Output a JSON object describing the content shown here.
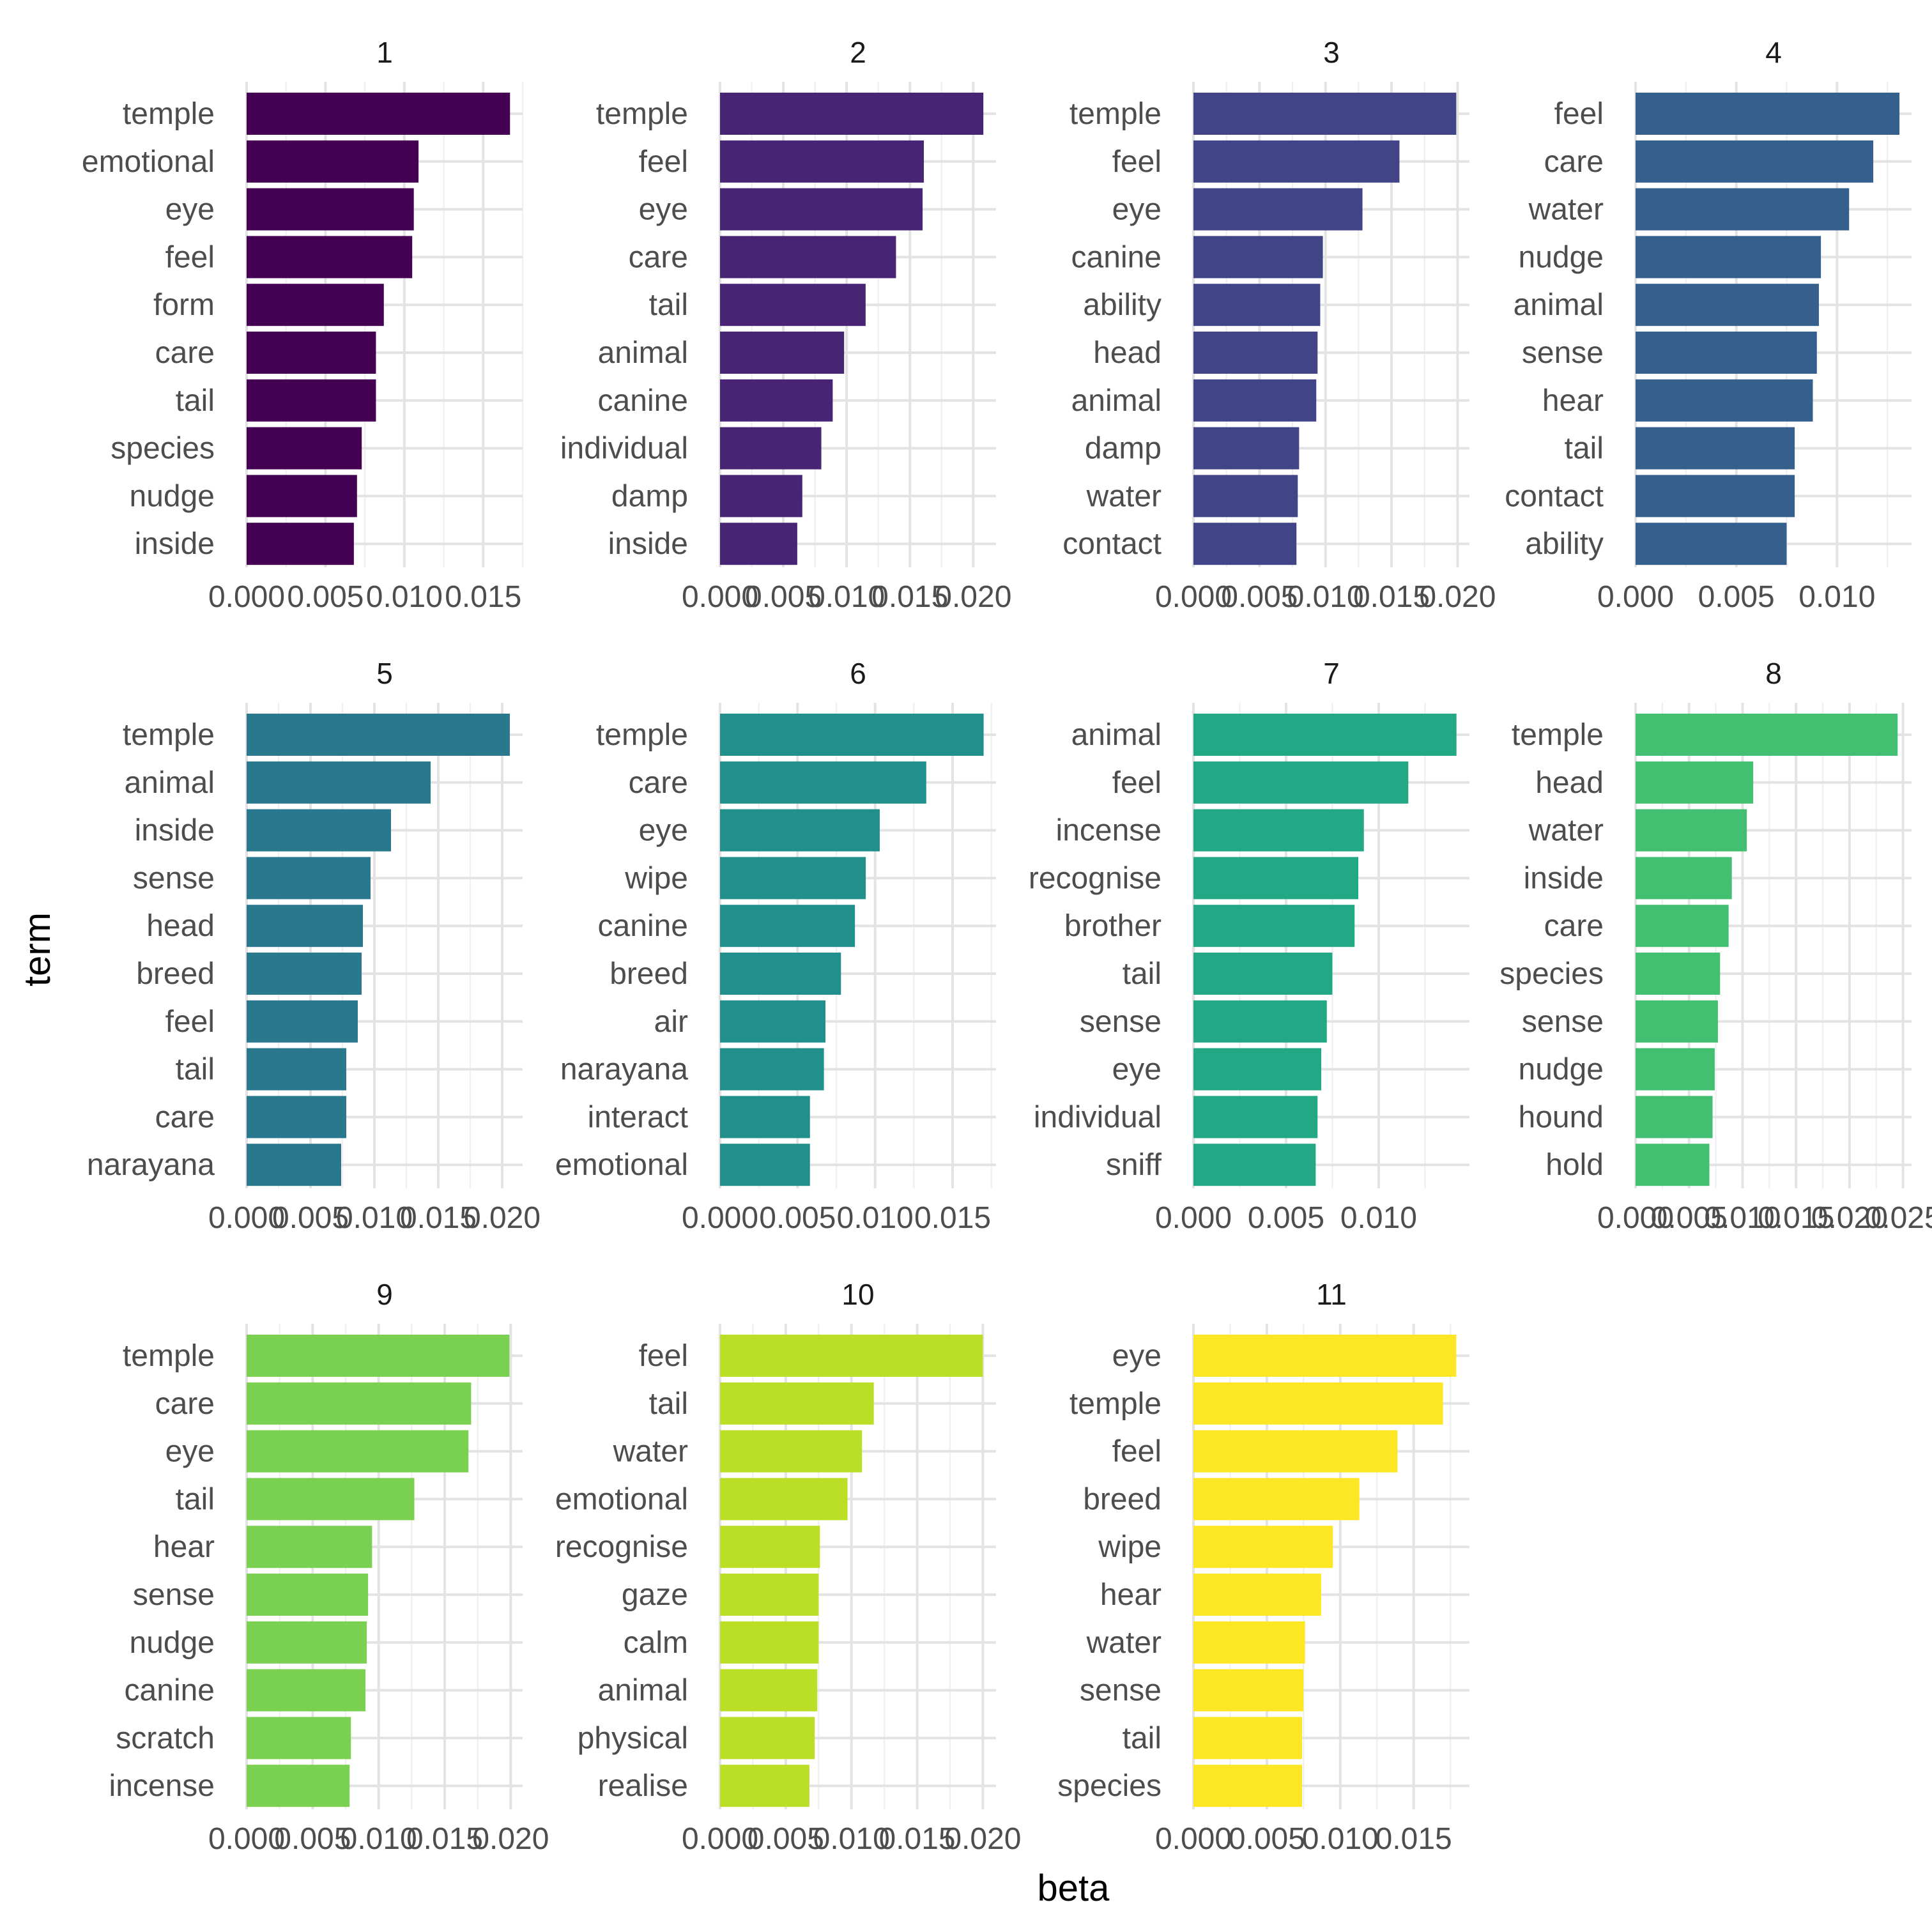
{
  "chart_data": {
    "type": "bar",
    "orientation": "horizontal",
    "layout": "facet grid, 4 columns x 3 rows, free scales",
    "xlabel": "beta",
    "ylabel": "term",
    "grid": true,
    "legend": "none",
    "colors": [
      "#440154",
      "#482475",
      "#414487",
      "#355F8D",
      "#2A788E",
      "#21908C",
      "#22A884",
      "#43BF71",
      "#7AD151",
      "#BBDF27",
      "#FDE725"
    ],
    "facets": [
      {
        "title": "1",
        "xlim": [
          0,
          0.0175
        ],
        "ticks": [
          0,
          0.005,
          0.01,
          0.015
        ],
        "tick_labels": [
          "0.000",
          "0.005",
          "0.010",
          "0.015"
        ],
        "terms": [
          "temple",
          "emotional",
          "eye",
          "feel",
          "form",
          "care",
          "tail",
          "species",
          "nudge",
          "inside"
        ],
        "values": [
          0.0167,
          0.0109,
          0.0106,
          0.0105,
          0.0087,
          0.0082,
          0.0082,
          0.0073,
          0.007,
          0.0068
        ]
      },
      {
        "title": "2",
        "xlim": [
          0,
          0.0218
        ],
        "ticks": [
          0,
          0.005,
          0.01,
          0.015,
          0.02
        ],
        "tick_labels": [
          "0.000",
          "0.005",
          "0.010",
          "0.015",
          "0.020"
        ],
        "terms": [
          "temple",
          "feel",
          "eye",
          "care",
          "tail",
          "animal",
          "canine",
          "individual",
          "damp",
          "inside"
        ],
        "values": [
          0.0208,
          0.0161,
          0.016,
          0.0139,
          0.0115,
          0.0098,
          0.0089,
          0.008,
          0.0065,
          0.0061
        ]
      },
      {
        "title": "3",
        "xlim": [
          0,
          0.0209
        ],
        "ticks": [
          0,
          0.005,
          0.01,
          0.015,
          0.02
        ],
        "tick_labels": [
          "0.000",
          "0.005",
          "0.010",
          "0.015",
          "0.020"
        ],
        "terms": [
          "temple",
          "feel",
          "eye",
          "canine",
          "ability",
          "head",
          "animal",
          "damp",
          "water",
          "contact"
        ],
        "values": [
          0.0199,
          0.0156,
          0.0128,
          0.0098,
          0.0096,
          0.0094,
          0.0093,
          0.008,
          0.0079,
          0.0078
        ]
      },
      {
        "title": "4",
        "xlim": [
          0,
          0.0137
        ],
        "ticks": [
          0,
          0.005,
          0.01
        ],
        "tick_labels": [
          "0.000",
          "0.005",
          "0.010"
        ],
        "terms": [
          "feel",
          "care",
          "water",
          "nudge",
          "animal",
          "sense",
          "hear",
          "tail",
          "contact",
          "ability"
        ],
        "values": [
          0.0131,
          0.0118,
          0.0106,
          0.0092,
          0.0091,
          0.009,
          0.0088,
          0.0079,
          0.0079,
          0.0075
        ]
      },
      {
        "title": "5",
        "xlim": [
          0,
          0.0216
        ],
        "ticks": [
          0,
          0.005,
          0.01,
          0.015,
          0.02
        ],
        "tick_labels": [
          "0.000",
          "0.005",
          "0.010",
          "0.015",
          "0.020"
        ],
        "terms": [
          "temple",
          "animal",
          "inside",
          "sense",
          "head",
          "breed",
          "feel",
          "tail",
          "care",
          "narayana"
        ],
        "values": [
          0.0206,
          0.0144,
          0.0113,
          0.0097,
          0.0091,
          0.009,
          0.0087,
          0.0078,
          0.0078,
          0.0074
        ]
      },
      {
        "title": "6",
        "xlim": [
          0,
          0.0178
        ],
        "ticks": [
          0,
          0.005,
          0.01,
          0.015
        ],
        "tick_labels": [
          "0.000",
          "0.005",
          "0.010",
          "0.015"
        ],
        "terms": [
          "temple",
          "care",
          "eye",
          "wipe",
          "canine",
          "breed",
          "air",
          "narayana",
          "interact",
          "emotional"
        ],
        "values": [
          0.017,
          0.0133,
          0.0103,
          0.0094,
          0.0087,
          0.0078,
          0.0068,
          0.0067,
          0.0058,
          0.0058
        ]
      },
      {
        "title": "7",
        "xlim": [
          0,
          0.0149
        ],
        "ticks": [
          0,
          0.005,
          0.01
        ],
        "tick_labels": [
          "0.000",
          "0.005",
          "0.010"
        ],
        "terms": [
          "animal",
          "feel",
          "incense",
          "recognise",
          "brother",
          "tail",
          "sense",
          "eye",
          "individual",
          "sniff"
        ],
        "values": [
          0.0142,
          0.0116,
          0.0092,
          0.0089,
          0.0087,
          0.0075,
          0.0072,
          0.0069,
          0.0067,
          0.0066
        ]
      },
      {
        "title": "8",
        "xlim": [
          0,
          0.0258
        ],
        "ticks": [
          0,
          0.005,
          0.01,
          0.015,
          0.02,
          0.025
        ],
        "tick_labels": [
          "0.000",
          "0.005",
          "0.010",
          "0.015",
          "0.020",
          "0.025"
        ],
        "terms": [
          "temple",
          "head",
          "water",
          "inside",
          "care",
          "species",
          "sense",
          "nudge",
          "hound",
          "hold"
        ],
        "values": [
          0.0245,
          0.011,
          0.0104,
          0.009,
          0.0087,
          0.0079,
          0.0077,
          0.0074,
          0.0072,
          0.0069
        ]
      },
      {
        "title": "9",
        "xlim": [
          0,
          0.0209
        ],
        "ticks": [
          0,
          0.005,
          0.01,
          0.015,
          0.02
        ],
        "tick_labels": [
          "0.000",
          "0.005",
          "0.010",
          "0.015",
          "0.020"
        ],
        "terms": [
          "temple",
          "care",
          "eye",
          "tail",
          "hear",
          "sense",
          "nudge",
          "canine",
          "scratch",
          "incense"
        ],
        "values": [
          0.0199,
          0.017,
          0.0168,
          0.0127,
          0.0095,
          0.0092,
          0.0091,
          0.009,
          0.0079,
          0.0078
        ]
      },
      {
        "title": "10",
        "xlim": [
          0,
          0.021
        ],
        "ticks": [
          0,
          0.005,
          0.01,
          0.015,
          0.02
        ],
        "tick_labels": [
          "0.000",
          "0.005",
          "0.010",
          "0.015",
          "0.020"
        ],
        "terms": [
          "feel",
          "tail",
          "water",
          "emotional",
          "recognise",
          "gaze",
          "calm",
          "animal",
          "physical",
          "realise"
        ],
        "values": [
          0.02,
          0.0117,
          0.0108,
          0.0097,
          0.0076,
          0.0075,
          0.0075,
          0.0074,
          0.0072,
          0.0068
        ]
      },
      {
        "title": "11",
        "xlim": [
          0,
          0.0188
        ],
        "ticks": [
          0,
          0.005,
          0.01,
          0.015
        ],
        "tick_labels": [
          "0.000",
          "0.005",
          "0.010",
          "0.015"
        ],
        "terms": [
          "eye",
          "temple",
          "feel",
          "breed",
          "wipe",
          "hear",
          "water",
          "sense",
          "tail",
          "species"
        ],
        "values": [
          0.0179,
          0.017,
          0.0139,
          0.0113,
          0.0095,
          0.0087,
          0.0076,
          0.0075,
          0.0074,
          0.0074
        ]
      }
    ]
  }
}
